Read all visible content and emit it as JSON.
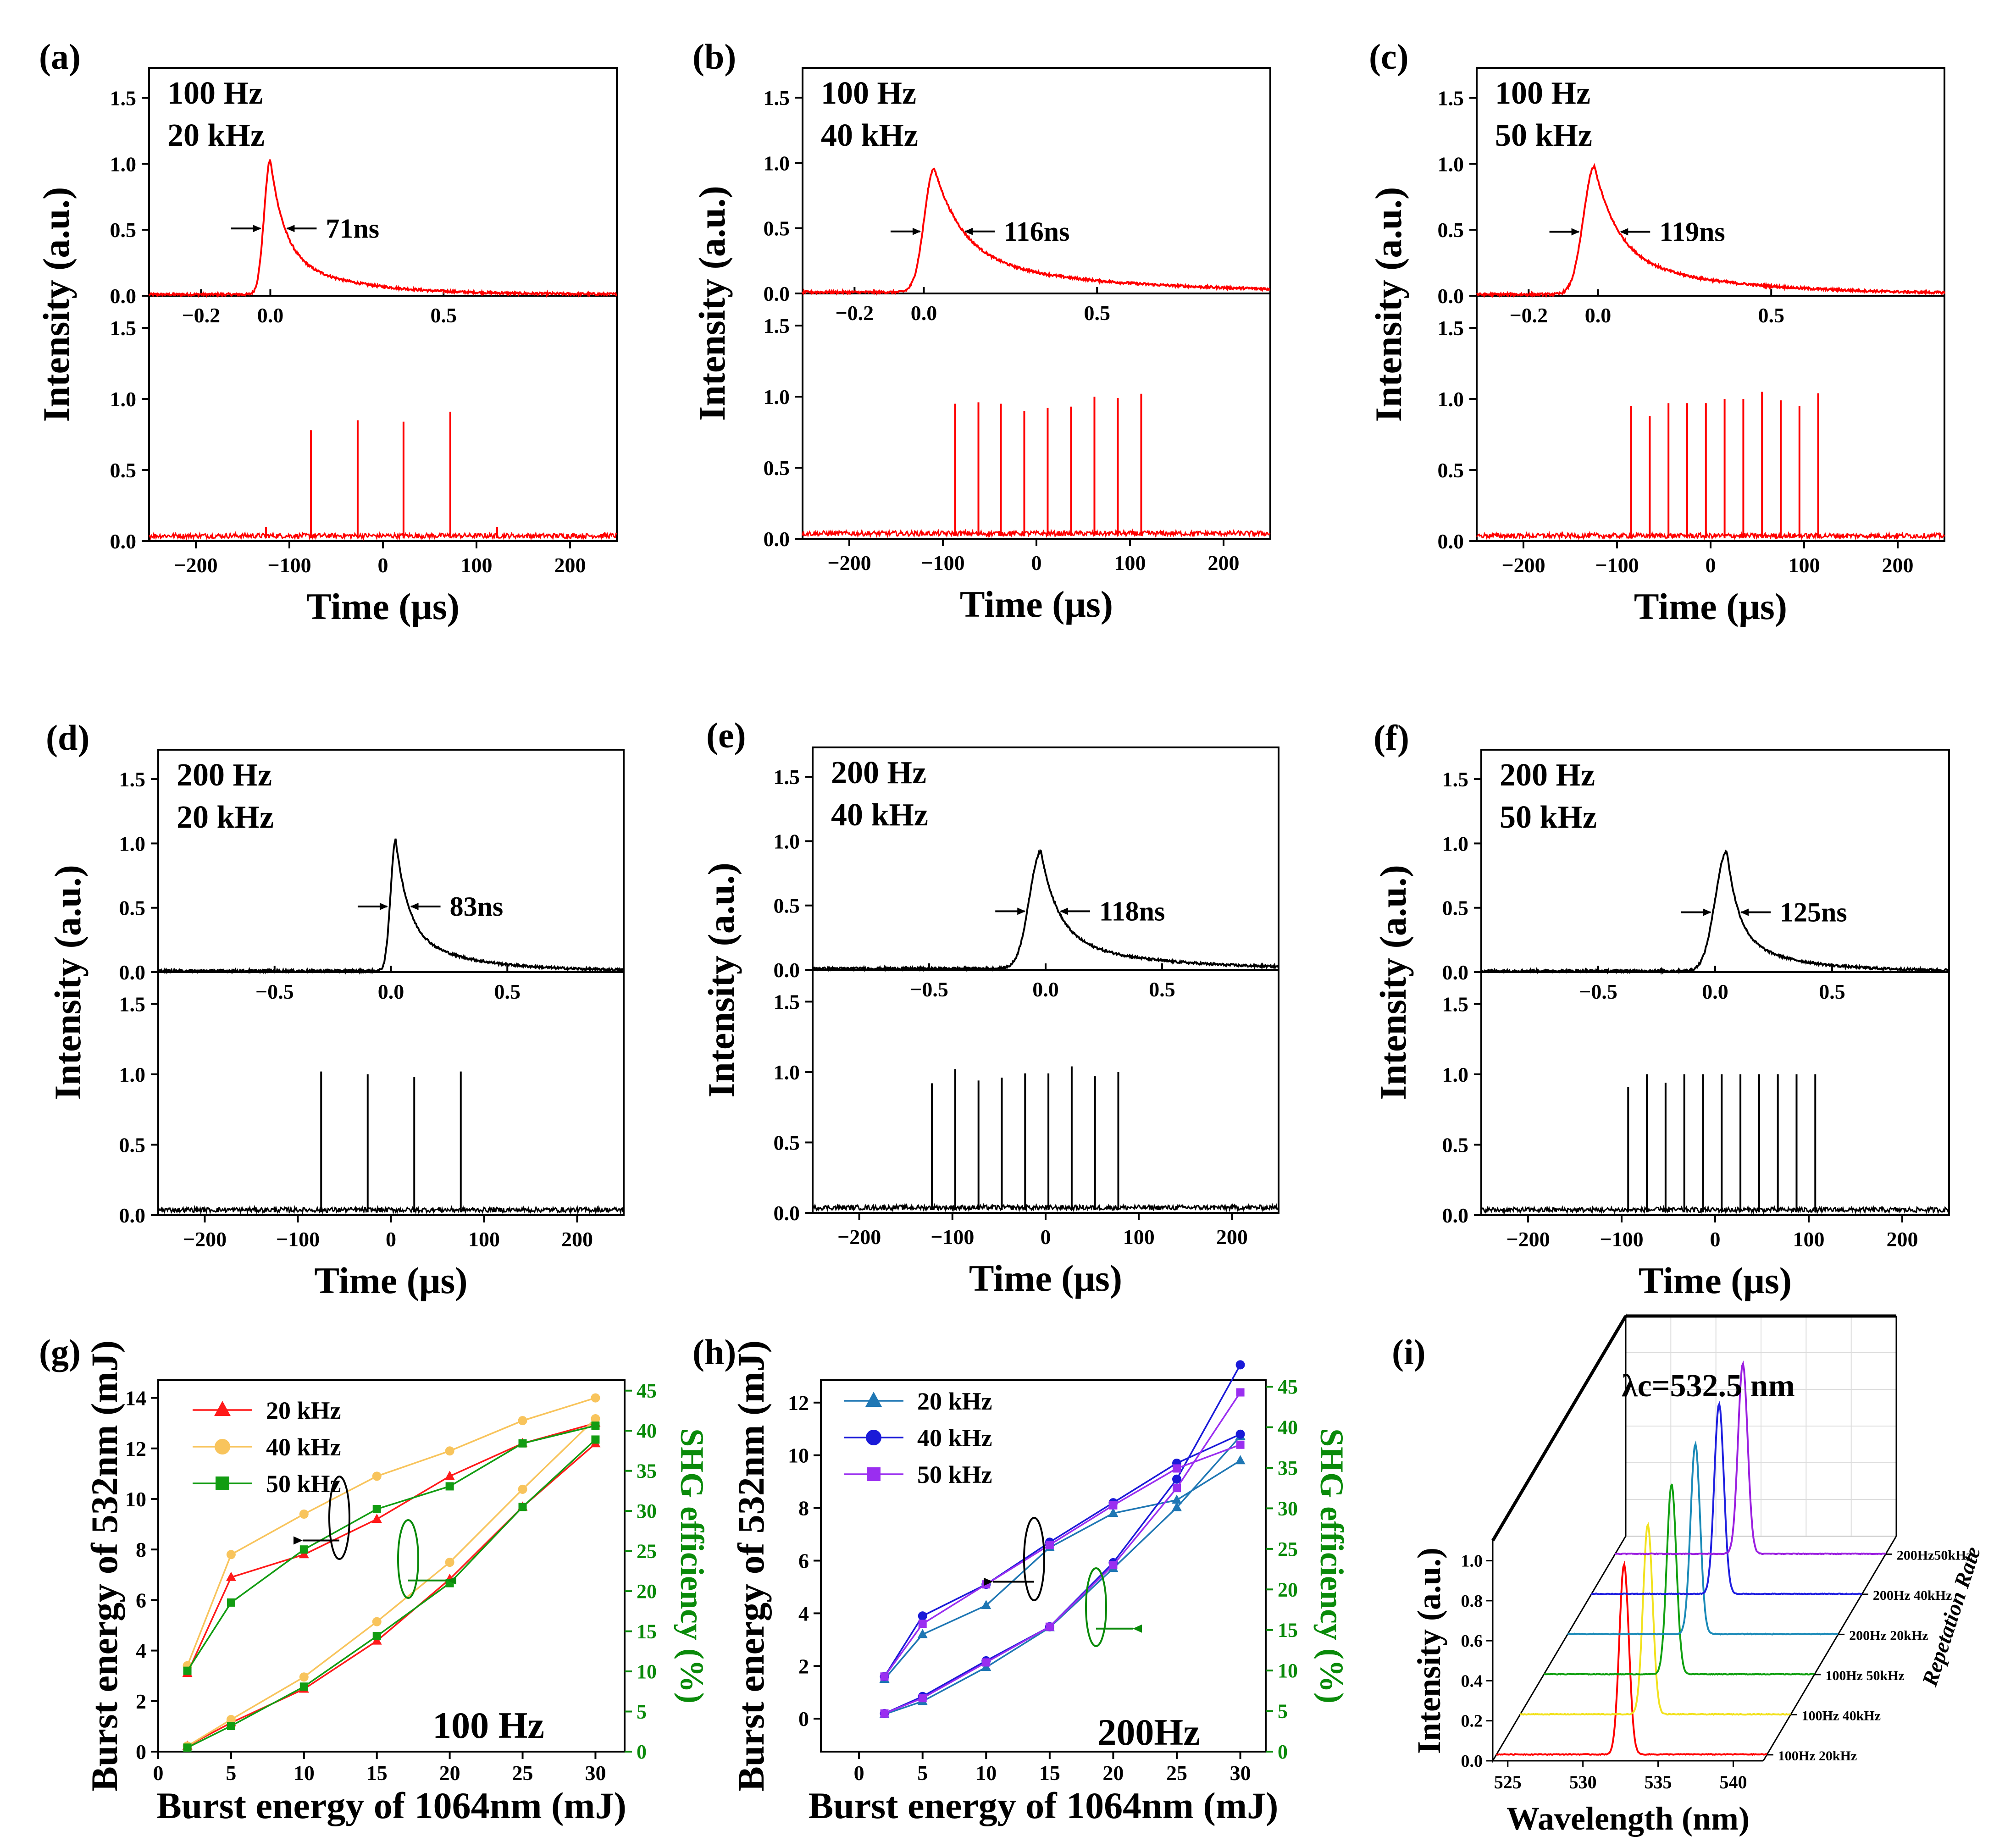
{
  "chart_data": [
    {
      "type": "line",
      "panel": "(a)",
      "line1": "100 Hz",
      "line2": "20 kHz",
      "fwhm": "71ns",
      "color": "#ff0000",
      "top_xticks": [
        "−0.2",
        "0.0",
        "0.5"
      ],
      "top_xlim": [
        -0.35,
        1.0
      ],
      "yticks": [
        "0.0",
        "0.5",
        "1.0",
        "1.5"
      ],
      "ylim": [
        0,
        1.7
      ],
      "pulse": {
        "center": 0.0,
        "peak": 1.02,
        "rise": 0.025,
        "decay": 0.09,
        "tail": 0.06
      },
      "burst_xticks": [
        "−200",
        "−100",
        "0",
        "100",
        "200"
      ],
      "burst_xlim": [
        -250,
        250
      ],
      "spikes": [
        [
          -125,
          0.1
        ],
        [
          -77,
          0.78
        ],
        [
          -27,
          0.85
        ],
        [
          22,
          0.84
        ],
        [
          72,
          0.91
        ],
        [
          122,
          0.1
        ]
      ],
      "xlabel": "Time (μs)",
      "ylabel": "Intensity (a.u.)"
    },
    {
      "type": "line",
      "panel": "(b)",
      "line1": "100 Hz",
      "line2": "40 kHz",
      "fwhm": "116ns",
      "color": "#ff0000",
      "top_xticks": [
        "−0.2",
        "0.0",
        "0.5"
      ],
      "top_xlim": [
        -0.35,
        1.0
      ],
      "yticks": [
        "0.0",
        "0.5",
        "1.0",
        "1.5"
      ],
      "ylim": [
        0,
        1.7
      ],
      "pulse": {
        "center": 0.03,
        "peak": 0.95,
        "rise": 0.04,
        "decay": 0.18,
        "tail": 0.1
      },
      "burst_xticks": [
        "−200",
        "−100",
        "0",
        "100",
        "200"
      ],
      "burst_xlim": [
        -250,
        250
      ],
      "spikes": [
        [
          -87,
          0.95
        ],
        [
          -62,
          0.96
        ],
        [
          -38,
          0.95
        ],
        [
          -13,
          0.9
        ],
        [
          12,
          0.92
        ],
        [
          37,
          0.93
        ],
        [
          62,
          1.0
        ],
        [
          87,
          0.99
        ],
        [
          112,
          1.02
        ]
      ],
      "xlabel": "Time (μs)",
      "ylabel": "Intensity (a.u.)"
    },
    {
      "type": "line",
      "panel": "(c)",
      "line1": "100 Hz",
      "line2": "50 kHz",
      "fwhm": "119ns",
      "color": "#ff0000",
      "top_xticks": [
        "−0.2",
        "0.0",
        "0.5"
      ],
      "top_xlim": [
        -0.35,
        1.0
      ],
      "yticks": [
        "0.0",
        "0.5",
        "1.0",
        "1.5"
      ],
      "ylim": [
        0,
        1.7
      ],
      "pulse": {
        "center": -0.01,
        "peak": 0.97,
        "rise": 0.045,
        "decay": 0.15,
        "tail": 0.08
      },
      "burst_xticks": [
        "−200",
        "−100",
        "0",
        "100",
        "200"
      ],
      "burst_xlim": [
        -250,
        250
      ],
      "spikes": [
        [
          -85,
          0.95
        ],
        [
          -65,
          0.88
        ],
        [
          -45,
          0.97
        ],
        [
          -25,
          0.97
        ],
        [
          -5,
          0.97
        ],
        [
          15,
          1.0
        ],
        [
          35,
          1.0
        ],
        [
          55,
          1.05
        ],
        [
          75,
          0.99
        ],
        [
          95,
          0.95
        ],
        [
          115,
          1.04
        ]
      ],
      "xlabel": "Time (μs)",
      "ylabel": "Intensity (a.u.)"
    },
    {
      "type": "line",
      "panel": "(d)",
      "line1": "200 Hz",
      "line2": "20 kHz",
      "fwhm": "83ns",
      "color": "#000000",
      "top_xticks": [
        "−0.5",
        "0.0",
        "0.5"
      ],
      "top_xlim": [
        -1.0,
        1.0
      ],
      "yticks": [
        "0.0",
        "0.5",
        "1.0",
        "1.5"
      ],
      "ylim": [
        0,
        1.7
      ],
      "pulse": {
        "center": 0.02,
        "peak": 1.02,
        "rise": 0.03,
        "decay": 0.12,
        "tail": 0.1
      },
      "burst_xticks": [
        "−200",
        "−100",
        "0",
        "100",
        "200"
      ],
      "burst_xlim": [
        -250,
        250
      ],
      "spikes": [
        [
          -125,
          0.06
        ],
        [
          -75,
          1.02
        ],
        [
          -25,
          1.0
        ],
        [
          25,
          0.98
        ],
        [
          75,
          1.02
        ]
      ],
      "xlabel": "Time (μs)",
      "ylabel": "Intensity (a.u.)"
    },
    {
      "type": "line",
      "panel": "(e)",
      "line1": "200 Hz",
      "line2": "40 kHz",
      "fwhm": "118ns",
      "color": "#000000",
      "top_xticks": [
        "−0.5",
        "0.0",
        "0.5"
      ],
      "top_xlim": [
        -1.0,
        1.0
      ],
      "yticks": [
        "0.0",
        "0.5",
        "1.0",
        "1.5"
      ],
      "ylim": [
        0,
        1.7
      ],
      "pulse": {
        "center": -0.02,
        "peak": 0.91,
        "rise": 0.07,
        "decay": 0.16,
        "tail": 0.03
      },
      "burst_xticks": [
        "−200",
        "−100",
        "0",
        "100",
        "200"
      ],
      "burst_xlim": [
        -250,
        250
      ],
      "spikes": [
        [
          -122,
          0.92
        ],
        [
          -97,
          1.02
        ],
        [
          -72,
          0.94
        ],
        [
          -47,
          0.96
        ],
        [
          -22,
          0.99
        ],
        [
          3,
          0.99
        ],
        [
          28,
          1.04
        ],
        [
          53,
          0.97
        ],
        [
          78,
          1.0
        ]
      ],
      "xlabel": "Time (μs)",
      "ylabel": "Intensity (a.u.)"
    },
    {
      "type": "line",
      "panel": "(f)",
      "line1": "200 Hz",
      "line2": "50 kHz",
      "fwhm": "125ns",
      "color": "#000000",
      "top_xticks": [
        "−0.5",
        "0.0",
        "0.5"
      ],
      "top_xlim": [
        -1.0,
        1.0
      ],
      "yticks": [
        "0.0",
        "0.5",
        "1.0",
        "1.5"
      ],
      "ylim": [
        0,
        1.7
      ],
      "pulse": {
        "center": 0.05,
        "peak": 0.93,
        "rise": 0.07,
        "decay": 0.11,
        "tail": 0.03
      },
      "burst_xticks": [
        "−200",
        "−100",
        "0",
        "100",
        "200"
      ],
      "burst_xlim": [
        -250,
        250
      ],
      "spikes": [
        [
          -93,
          0.91
        ],
        [
          -73,
          1.0
        ],
        [
          -53,
          0.94
        ],
        [
          -33,
          1.0
        ],
        [
          -13,
          1.0
        ],
        [
          7,
          1.0
        ],
        [
          27,
          1.0
        ],
        [
          47,
          1.0
        ],
        [
          67,
          1.0
        ],
        [
          87,
          1.0
        ],
        [
          107,
          1.0
        ]
      ],
      "xlabel": "Time (μs)",
      "ylabel": "Intensity (a.u.)"
    },
    {
      "type": "line",
      "panel": "(g)",
      "annotation": "100 Hz",
      "xlabel": "Burst energy of 1064nm (mJ)",
      "ylabel": "Burst energy of 532nm (mJ)",
      "y2label": "SHG efficiency (%)",
      "xlim": [
        0,
        32
      ],
      "ylim": [
        0,
        14.7
      ],
      "y2lim": [
        0,
        46.3
      ],
      "xticks": [
        0,
        5,
        10,
        15,
        20,
        25,
        30
      ],
      "yticks": [
        0,
        2,
        4,
        6,
        8,
        10,
        12,
        14
      ],
      "y2ticks": [
        0,
        5,
        10,
        15,
        20,
        25,
        30,
        35,
        40,
        45
      ],
      "x": [
        2,
        5,
        10,
        15,
        20,
        25,
        30
      ],
      "series": [
        {
          "name": "20 kHz",
          "color": "#ff1a1a",
          "marker": "triangle",
          "energy": [
            3.1,
            6.9,
            7.8,
            9.2,
            10.9,
            12.2,
            13.0
          ],
          "efficiency": [
            0.7,
            3.6,
            7.8,
            13.8,
            21.5,
            30.5,
            38.4
          ]
        },
        {
          "name": "40 kHz",
          "color": "#f8c45c",
          "marker": "circle",
          "energy": [
            3.4,
            7.8,
            9.4,
            10.9,
            11.9,
            13.1,
            14.0
          ],
          "efficiency": [
            0.7,
            4.0,
            9.3,
            16.2,
            23.6,
            32.7,
            41.5
          ]
        },
        {
          "name": "50 kHz",
          "color": "#129c12",
          "marker": "square",
          "energy": [
            3.2,
            5.9,
            8.0,
            9.6,
            10.5,
            12.2,
            12.9
          ],
          "efficiency": [
            0.5,
            3.2,
            8.1,
            14.4,
            21.0,
            30.5,
            38.9
          ]
        }
      ]
    },
    {
      "type": "line",
      "panel": "(h)",
      "annotation": "200Hz",
      "xlabel": "Burst energy of 1064nm (mJ)",
      "ylabel": "Burst energy of 532nm (mJ)",
      "y2label": "SHG efficiency (%)",
      "xlim": [
        -3,
        32
      ],
      "ylim": [
        -1.25,
        12.85
      ],
      "y2lim": [
        0,
        45.8
      ],
      "xticks": [
        0,
        5,
        10,
        15,
        20,
        25,
        30
      ],
      "yticks": [
        0,
        2,
        4,
        6,
        8,
        10,
        12
      ],
      "y2ticks": [
        0,
        5,
        10,
        15,
        20,
        25,
        30,
        35,
        40,
        45
      ],
      "x": [
        2,
        5,
        10,
        15,
        20,
        25,
        30
      ],
      "series": [
        {
          "name": "20 kHz",
          "color": "#1f77b4",
          "marker": "triangle",
          "energy": [
            1.5,
            3.2,
            4.3,
            6.5,
            7.8,
            8.3,
            9.8
          ],
          "efficiency": [
            4.6,
            6.2,
            10.4,
            15.3,
            22.6,
            30.1,
            38.9
          ]
        },
        {
          "name": "40 kHz",
          "color": "#1a1ad8",
          "marker": "circle",
          "energy": [
            1.6,
            3.9,
            5.1,
            6.7,
            8.2,
            9.7,
            10.8
          ],
          "efficiency": [
            4.7,
            6.8,
            11.2,
            15.4,
            23.3,
            33.6,
            47.7
          ]
        },
        {
          "name": "50 kHz",
          "color": "#9a2ef0",
          "marker": "square",
          "energy": [
            1.6,
            3.6,
            5.1,
            6.6,
            8.1,
            9.5,
            10.4
          ],
          "efficiency": [
            4.7,
            6.6,
            11.0,
            15.4,
            23.0,
            32.5,
            44.3
          ]
        }
      ]
    },
    {
      "type": "line",
      "panel": "(i)",
      "annotation": "λc=532.5 nm",
      "xlabel": "Wavelength (nm)",
      "ylabel": "Intensity (a.u.)",
      "zlabel": "Repetation Rate",
      "xticks": [
        525,
        530,
        535,
        540
      ],
      "yticks": [
        "0.0",
        "0.2",
        "0.4",
        "0.6",
        "0.8",
        "1.0"
      ],
      "xlim": [
        524,
        542
      ],
      "ylim": [
        0,
        1.1
      ],
      "peak_center": 532.5,
      "peak_width": 0.45,
      "series": [
        {
          "name": "100Hz 20kHz",
          "color": "#ff0000"
        },
        {
          "name": "100Hz 40kHz",
          "color": "#f2e21e"
        },
        {
          "name": "100Hz 50kHz",
          "color": "#10a010"
        },
        {
          "name": "200Hz 20kHz",
          "color": "#1a8ab8"
        },
        {
          "name": "200Hz 40kHz",
          "color": "#1f1fe0"
        },
        {
          "name": "200Hz50kHz",
          "color": "#9b1fe0"
        }
      ]
    }
  ]
}
